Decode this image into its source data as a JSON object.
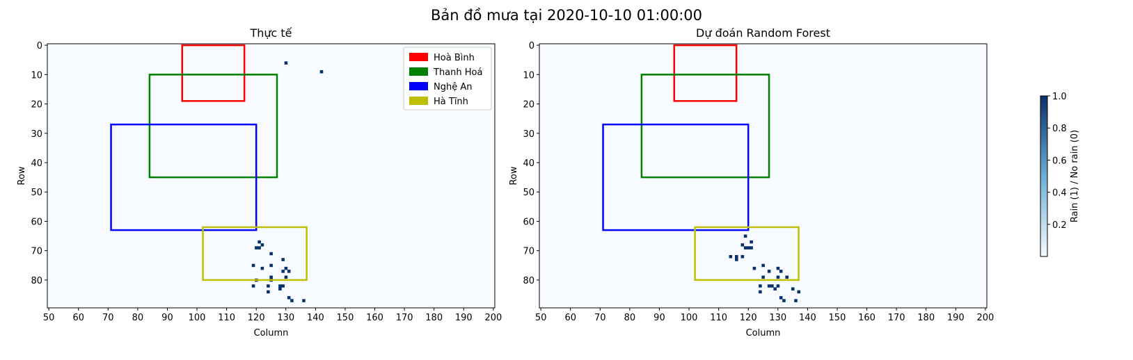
{
  "figure_title": "Bản đồ mưa tại 2020-10-10 01:00:00",
  "colorbar": {
    "label": "Rain (1) / No rain (0)",
    "ticks": [
      0.2,
      0.4,
      0.6,
      0.8,
      1.0
    ],
    "tick_labels": [
      "0.2",
      "0.4",
      "0.6",
      "0.8",
      "1.0"
    ],
    "range": [
      0,
      1
    ],
    "cmap_low": "#f7fbff",
    "cmap_high": "#08306b"
  },
  "chart_data": [
    {
      "type": "heatmap",
      "title": "Thực tế",
      "xlabel": "Column",
      "ylabel": "Row",
      "xlim": [
        49.5,
        200.5
      ],
      "ylim": [
        89.5,
        -0.5
      ],
      "xticks": [
        50,
        60,
        70,
        80,
        90,
        100,
        110,
        120,
        130,
        140,
        150,
        160,
        170,
        180,
        190,
        200
      ],
      "yticks": [
        0,
        10,
        20,
        30,
        40,
        50,
        60,
        70,
        80
      ],
      "background_color": "#f7fbff",
      "rain_color": "#08306b",
      "legend": {
        "placement": "top-right",
        "entries": [
          {
            "label": "Hoà Bình",
            "color": "#ff0000"
          },
          {
            "label": "Thanh Hoá",
            "color": "#008000"
          },
          {
            "label": "Nghệ An",
            "color": "#0000ff"
          },
          {
            "label": "Hà Tĩnh",
            "color": "#bfbf00"
          }
        ]
      },
      "regions": [
        {
          "name": "Hoà Bình",
          "color": "#ff0000",
          "col_min": 95,
          "col_max": 116,
          "row_min": 0,
          "row_max": 19
        },
        {
          "name": "Thanh Hoá",
          "color": "#008000",
          "col_min": 84,
          "col_max": 127,
          "row_min": 10,
          "row_max": 45
        },
        {
          "name": "Nghệ An",
          "color": "#0000ff",
          "col_min": 71,
          "col_max": 120,
          "row_min": 27,
          "row_max": 63
        },
        {
          "name": "Hà Tĩnh",
          "color": "#bfbf00",
          "col_min": 102,
          "col_max": 137,
          "row_min": 62,
          "row_max": 80
        }
      ],
      "rain_cells": [
        [
          130,
          6
        ],
        [
          142,
          9
        ],
        [
          121,
          67
        ],
        [
          122,
          68
        ],
        [
          120,
          69
        ],
        [
          121,
          69
        ],
        [
          125,
          71
        ],
        [
          129,
          73
        ],
        [
          119,
          75
        ],
        [
          125,
          75
        ],
        [
          122,
          76
        ],
        [
          130,
          76
        ],
        [
          129,
          77
        ],
        [
          131,
          77
        ],
        [
          125,
          79
        ],
        [
          130,
          79
        ],
        [
          125,
          80
        ],
        [
          120,
          80
        ],
        [
          119,
          82
        ],
        [
          124,
          82
        ],
        [
          128,
          82
        ],
        [
          129,
          82
        ],
        [
          124,
          84
        ],
        [
          128,
          83
        ],
        [
          131,
          86
        ],
        [
          132,
          87
        ],
        [
          136,
          87
        ]
      ]
    },
    {
      "type": "heatmap",
      "title": "Dự đoán Random Forest",
      "xlabel": "Column",
      "ylabel": "Row",
      "xlim": [
        49.5,
        200.5
      ],
      "ylim": [
        89.5,
        -0.5
      ],
      "xticks": [
        50,
        60,
        70,
        80,
        90,
        100,
        110,
        120,
        130,
        140,
        150,
        160,
        170,
        180,
        190,
        200
      ],
      "yticks": [
        0,
        10,
        20,
        30,
        40,
        50,
        60,
        70,
        80
      ],
      "background_color": "#f7fbff",
      "rain_color": "#08306b",
      "regions": [
        {
          "name": "Hoà Bình",
          "color": "#ff0000",
          "col_min": 95,
          "col_max": 116,
          "row_min": 0,
          "row_max": 19
        },
        {
          "name": "Thanh Hoá",
          "color": "#008000",
          "col_min": 84,
          "col_max": 127,
          "row_min": 10,
          "row_max": 45
        },
        {
          "name": "Nghệ An",
          "color": "#0000ff",
          "col_min": 71,
          "col_max": 120,
          "row_min": 27,
          "row_max": 63
        },
        {
          "name": "Hà Tĩnh",
          "color": "#bfbf00",
          "col_min": 102,
          "col_max": 137,
          "row_min": 62,
          "row_max": 80
        }
      ],
      "rain_cells": [
        [
          119,
          65
        ],
        [
          121,
          67
        ],
        [
          118,
          68
        ],
        [
          119,
          69
        ],
        [
          120,
          69
        ],
        [
          121,
          69
        ],
        [
          114,
          72
        ],
        [
          116,
          72
        ],
        [
          118,
          72
        ],
        [
          116,
          73
        ],
        [
          122,
          76
        ],
        [
          125,
          75
        ],
        [
          127,
          77
        ],
        [
          130,
          76
        ],
        [
          131,
          77
        ],
        [
          125,
          79
        ],
        [
          130,
          79
        ],
        [
          133,
          79
        ],
        [
          124,
          82
        ],
        [
          128,
          82
        ],
        [
          130,
          82
        ],
        [
          127,
          82
        ],
        [
          129,
          83
        ],
        [
          135,
          83
        ],
        [
          124,
          84
        ],
        [
          137,
          84
        ],
        [
          131,
          86
        ],
        [
          132,
          87
        ],
        [
          136,
          87
        ]
      ]
    }
  ]
}
